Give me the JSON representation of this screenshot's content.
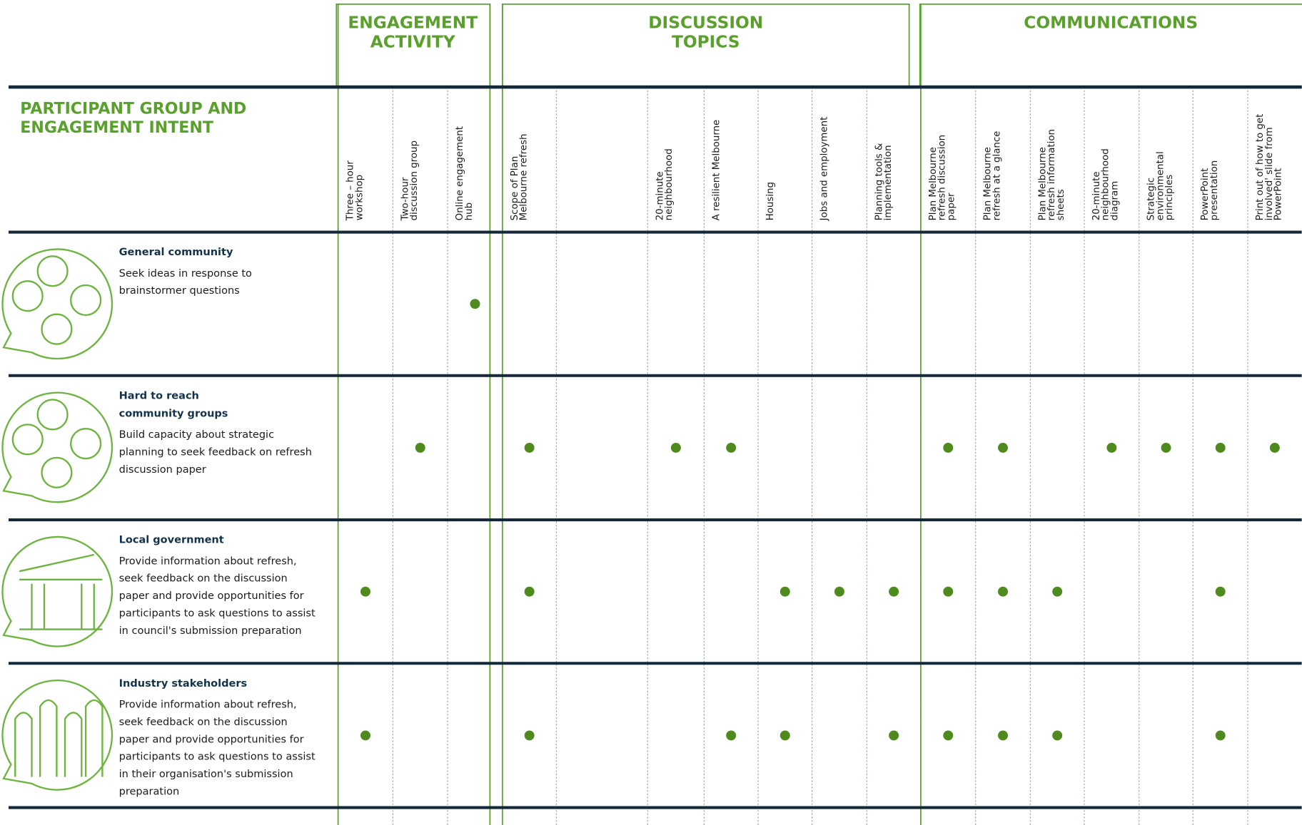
{
  "header": {
    "title": [
      "PARTICIPANT GROUP AND",
      "ENGAGEMENT INTENT"
    ]
  },
  "groups": [
    {
      "title": [
        "ENGAGEMENT",
        "ACTIVITY"
      ]
    },
    {
      "title": [
        "DISCUSSION",
        "TOPICS"
      ]
    },
    {
      "title": [
        "COMMUNICATIONS"
      ]
    }
  ],
  "columns": [
    {
      "label": [
        "Three – hour",
        "workshop"
      ]
    },
    {
      "label": [
        "Two-hour",
        "discussion group"
      ]
    },
    {
      "label": [
        "Online engagement",
        "hub"
      ]
    },
    {
      "label": [
        "Scope of Plan",
        "Melbourne refresh"
      ]
    },
    {
      "label": null
    },
    {
      "label": [
        "20-minute",
        "neighbourhood"
      ]
    },
    {
      "label": [
        "A resilient Melbourne"
      ]
    },
    {
      "label": [
        "Housing"
      ]
    },
    {
      "label": [
        "Jobs and employment"
      ]
    },
    {
      "label": [
        "Planning tools &",
        "implementation"
      ]
    },
    {
      "label": [
        "Plan Melbourne",
        "refresh discussion",
        "paper"
      ]
    },
    {
      "label": [
        "Plan Melbourne",
        "refresh at a glance"
      ]
    },
    {
      "label": [
        "Plan Melbourne",
        "refresh information",
        "sheets"
      ]
    },
    {
      "label": [
        "20-minute",
        "neighbourhood",
        "diagram"
      ]
    },
    {
      "label": [
        "Strategic",
        "environmental",
        "principles"
      ]
    },
    {
      "label": [
        "PowerPoint",
        "presentation"
      ]
    },
    {
      "label": [
        "Print out of how to get",
        "involved' slide from",
        "PowerPoint"
      ]
    }
  ],
  "rows": [
    {
      "title": [
        "General community"
      ],
      "description": [
        "Seek ideas in response to",
        "brainstormer questions"
      ],
      "cells": [
        false,
        false,
        true,
        false,
        false,
        false,
        false,
        false,
        false,
        false,
        false,
        false,
        false,
        false,
        false,
        false,
        false
      ]
    },
    {
      "title": [
        "Hard to reach",
        "community groups"
      ],
      "description": [
        "Build capacity about strategic",
        "planning to seek feedback on refresh",
        "discussion paper"
      ],
      "cells": [
        false,
        true,
        false,
        true,
        false,
        true,
        true,
        false,
        false,
        false,
        true,
        true,
        false,
        true,
        true,
        true,
        true
      ]
    },
    {
      "title": [
        "Local government"
      ],
      "description": [
        "Provide information about refresh,",
        "seek feedback on the discussion",
        "paper and provide opportunities for",
        "participants to ask questions to assist",
        "in council's submission preparation"
      ],
      "cells": [
        true,
        false,
        false,
        true,
        false,
        false,
        false,
        true,
        true,
        true,
        true,
        true,
        true,
        false,
        false,
        true,
        false
      ]
    },
    {
      "title": [
        "Industry stakeholders"
      ],
      "description": [
        "Provide information about refresh,",
        "seek feedback on the discussion",
        "paper and provide opportunities for",
        "participants to ask questions to assist",
        "in their organisation's submission",
        "preparation"
      ],
      "cells": [
        true,
        false,
        false,
        true,
        false,
        false,
        true,
        true,
        false,
        true,
        true,
        true,
        true,
        false,
        false,
        true,
        false
      ]
    }
  ]
}
